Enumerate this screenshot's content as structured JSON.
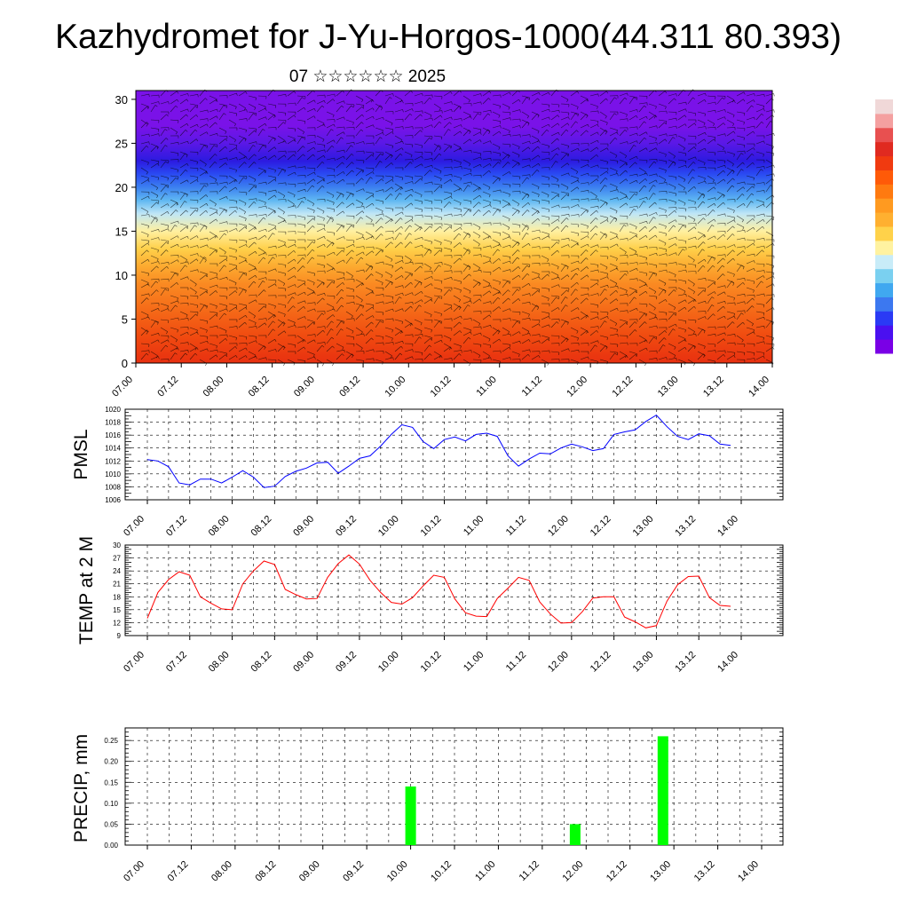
{
  "title": "Kazhydromet for J-Yu-Horgos-1000(44.311 80.393)",
  "subtitle": "07 ☆☆☆☆☆☆ 2025",
  "time_ticks": [
    "07.00",
    "07.12",
    "08.00",
    "08.12",
    "09.00",
    "09.12",
    "10.00",
    "10.12",
    "11.00",
    "11.12",
    "12.00",
    "12.12",
    "13.00",
    "13.12",
    "14.00"
  ],
  "colors": {
    "pmsl_line": "#0000ff",
    "temp_line": "#ff0000",
    "precip_bar": "#00ff00",
    "colorbar": [
      "#7a00e6",
      "#4a10f0",
      "#2a3af5",
      "#3c78f0",
      "#40a8f0",
      "#7ad0f0",
      "#c8ecf8",
      "#fff2a0",
      "#ffd24a",
      "#ffb030",
      "#ff9a20",
      "#ff7a10",
      "#ff5a08",
      "#f03a10",
      "#e02a20",
      "#e85050",
      "#f4a0a0",
      "#f0d8d8"
    ]
  },
  "chart_data": [
    {
      "type": "heatmap",
      "description_key": "wind_cross_section",
      "x_ticks": [
        "07.00",
        "07.12",
        "08.00",
        "08.12",
        "09.00",
        "09.12",
        "10.00",
        "10.12",
        "11.00",
        "11.12",
        "12.00",
        "12.12",
        "13.00",
        "13.12",
        "14.00"
      ],
      "y_ticks": [
        0,
        5,
        10,
        15,
        20,
        25,
        30
      ],
      "ylim": [
        0,
        31
      ],
      "xlim": [
        0,
        14
      ],
      "bands": [
        {
          "y": 0,
          "color": "#e83010"
        },
        {
          "y": 3,
          "color": "#f04a10"
        },
        {
          "y": 6,
          "color": "#f56a18"
        },
        {
          "y": 9,
          "color": "#fa8a22"
        },
        {
          "y": 11,
          "color": "#fcaa30"
        },
        {
          "y": 13,
          "color": "#ffd04a"
        },
        {
          "y": 15,
          "color": "#fff0a0"
        },
        {
          "y": 17,
          "color": "#bfe6f6"
        },
        {
          "y": 18.5,
          "color": "#60b8f2"
        },
        {
          "y": 20,
          "color": "#3c80f0"
        },
        {
          "y": 21.5,
          "color": "#2a4af2"
        },
        {
          "y": 23,
          "color": "#2c1ae0"
        },
        {
          "y": 25,
          "color": "#5a18e6"
        },
        {
          "y": 27,
          "color": "#7a12e8"
        },
        {
          "y": 31,
          "color": "#7a12e8"
        }
      ]
    },
    {
      "type": "line",
      "ylabel": "PMSL",
      "ylim": [
        1006,
        1020
      ],
      "y_ticks": [
        1006,
        1008,
        1010,
        1012,
        1014,
        1016,
        1018,
        1020
      ],
      "x_ticks": [
        "07.00",
        "07.12",
        "08.00",
        "08.12",
        "09.00",
        "09.12",
        "10.00",
        "10.12",
        "11.00",
        "11.12",
        "12.00",
        "12.12",
        "13.00",
        "13.12",
        "14.00"
      ],
      "x": [
        0,
        0.25,
        0.5,
        0.75,
        1,
        1.25,
        1.5,
        1.75,
        2,
        2.25,
        2.5,
        2.75,
        3,
        3.25,
        3.5,
        3.75,
        4,
        4.25,
        4.5,
        4.75,
        5,
        5.25,
        5.5,
        5.75,
        6,
        6.25,
        6.5,
        6.75,
        7,
        7.25,
        7.5,
        7.75,
        8,
        8.25,
        8.5,
        8.75,
        9,
        9.25,
        9.5,
        9.75,
        10,
        10.25,
        10.5,
        10.75,
        11,
        11.25,
        11.5,
        11.75,
        12,
        12.25,
        12.5,
        12.75,
        13,
        13.25,
        13.5,
        13.75
      ],
      "values": [
        1012.2,
        1012.0,
        1011.1,
        1008.6,
        1008.3,
        1009.2,
        1009.2,
        1008.6,
        1009.5,
        1010.5,
        1009.5,
        1007.9,
        1008.1,
        1009.6,
        1010.4,
        1010.9,
        1011.7,
        1011.8,
        1010.1,
        1011.2,
        1012.4,
        1012.8,
        1014.3,
        1016.1,
        1017.6,
        1017.2,
        1015.0,
        1013.9,
        1015.3,
        1015.7,
        1015.1,
        1016.1,
        1016.3,
        1015.8,
        1012.8,
        1011.2,
        1012.3,
        1013.2,
        1013.1,
        1014.0,
        1014.6,
        1014.2,
        1013.6,
        1013.9,
        1016.1,
        1016.5,
        1016.8,
        1018.1,
        1019.1,
        1017.3,
        1015.8,
        1015.3,
        1016.2,
        1015.9,
        1014.6,
        1014.4
      ]
    },
    {
      "type": "line",
      "ylabel": "TEMP at 2 M",
      "ylim": [
        9,
        30
      ],
      "y_ticks": [
        9,
        12,
        15,
        18,
        21,
        24,
        27,
        30
      ],
      "x_ticks": [
        "07.00",
        "07.12",
        "08.00",
        "08.12",
        "09.00",
        "09.12",
        "10.00",
        "10.12",
        "11.00",
        "11.12",
        "12.00",
        "12.12",
        "13.00",
        "13.12",
        "14.00"
      ],
      "x": [
        0,
        0.25,
        0.5,
        0.75,
        1,
        1.25,
        1.5,
        1.75,
        2,
        2.25,
        2.5,
        2.75,
        3,
        3.25,
        3.5,
        3.75,
        4,
        4.25,
        4.5,
        4.75,
        5,
        5.25,
        5.5,
        5.75,
        6,
        6.25,
        6.5,
        6.75,
        7,
        7.25,
        7.5,
        7.75,
        8,
        8.25,
        8.5,
        8.75,
        9,
        9.25,
        9.5,
        9.75,
        10,
        10.25,
        10.5,
        10.75,
        11,
        11.25,
        11.5,
        11.75,
        12,
        12.25,
        12.5,
        12.75,
        13,
        13.25,
        13.5,
        13.75
      ],
      "values": [
        13.0,
        19.0,
        22.0,
        23.8,
        23.0,
        18.0,
        16.5,
        15.2,
        15.0,
        21.0,
        24.0,
        26.3,
        25.5,
        19.7,
        18.5,
        17.5,
        17.6,
        22.5,
        25.7,
        27.7,
        25.6,
        21.8,
        19.0,
        16.7,
        16.3,
        17.8,
        20.5,
        23.0,
        22.5,
        17.5,
        14.3,
        13.5,
        13.4,
        17.6,
        20.0,
        22.5,
        21.8,
        16.8,
        14.0,
        11.9,
        12.0,
        14.5,
        17.7,
        18.0,
        18.0,
        13.3,
        12.2,
        10.8,
        11.3,
        17.0,
        20.8,
        22.7,
        22.8,
        17.8,
        16.0,
        15.8
      ]
    },
    {
      "type": "bar",
      "ylabel": "PRECIP, mm",
      "ylim": [
        0,
        0.28
      ],
      "y_ticks": [
        "0.00",
        "0.05",
        "0.10",
        "0.15",
        "0.20",
        "0.25"
      ],
      "x_ticks": [
        "07.00",
        "07.12",
        "08.00",
        "08.12",
        "09.00",
        "09.12",
        "10.00",
        "10.12",
        "11.00",
        "11.12",
        "12.00",
        "12.12",
        "13.00",
        "13.12",
        "14.00"
      ],
      "bars": [
        {
          "x": 6.0,
          "value": 0.14
        },
        {
          "x": 9.75,
          "value": 0.05
        },
        {
          "x": 11.75,
          "value": 0.26
        }
      ]
    }
  ]
}
